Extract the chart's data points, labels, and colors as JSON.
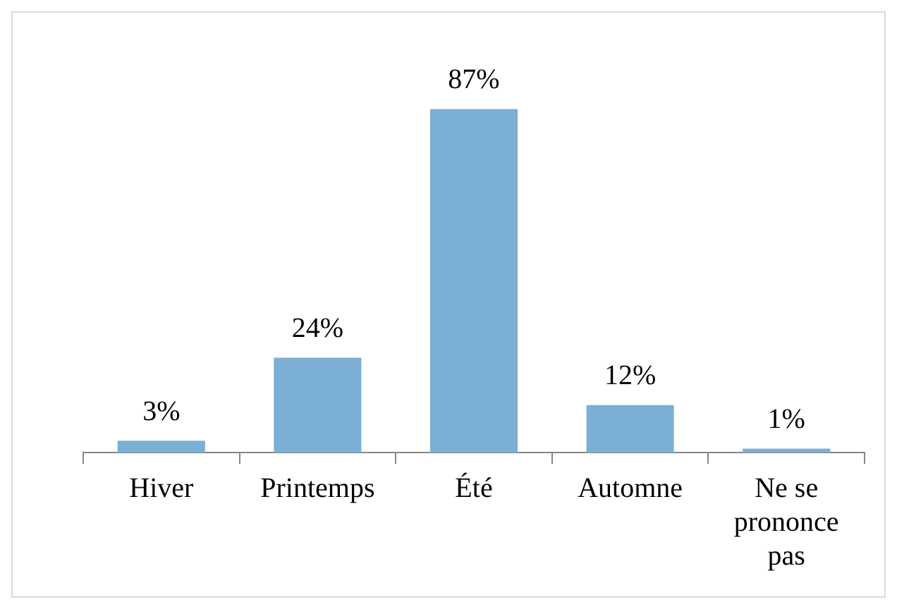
{
  "chart_data": {
    "type": "bar",
    "categories": [
      "Hiver",
      "Printemps",
      "Été",
      "Automne",
      "Ne se prononce pas"
    ],
    "values": [
      3,
      24,
      87,
      12,
      1
    ],
    "value_labels": [
      "3%",
      "24%",
      "87%",
      "12%",
      "1%"
    ],
    "color": "#7bafd4",
    "legend": false,
    "grid": false
  }
}
